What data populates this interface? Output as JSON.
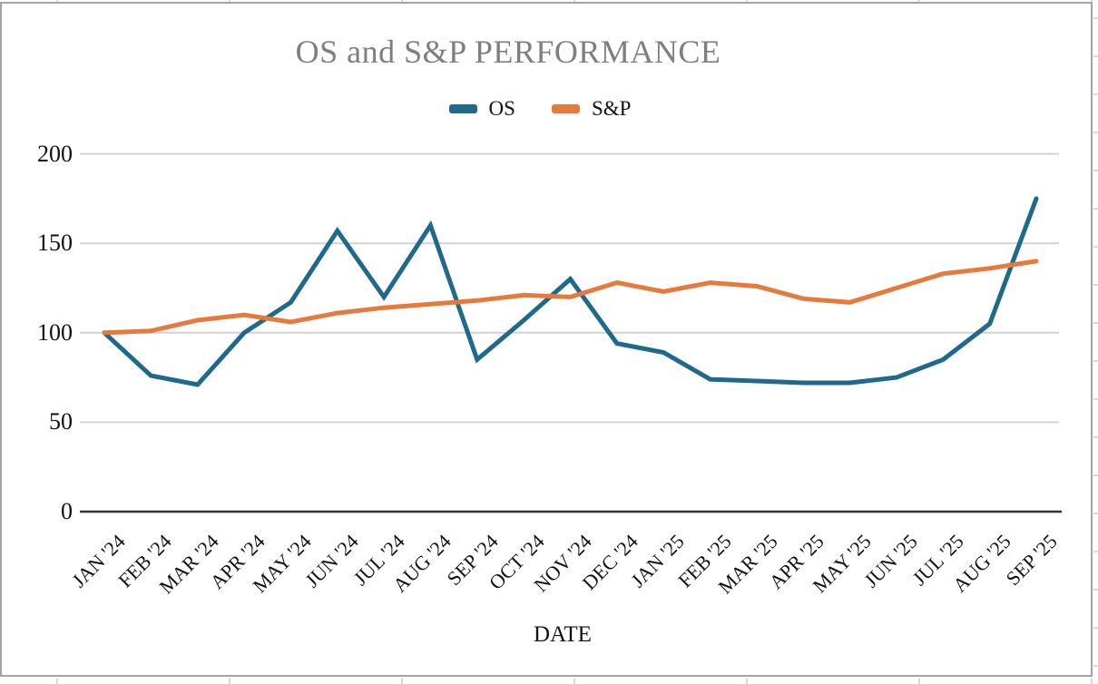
{
  "window": {
    "background_color": "#ffffff",
    "object_border_color": "#a3a3a3",
    "cell_gridline_color": "#cccccc"
  },
  "chart_data": {
    "type": "line",
    "title": "OS and S&P PERFORMANCE",
    "title_color": "#7f7f7f",
    "xlabel": "DATE",
    "ylabel": "",
    "categories": [
      "JAN '24",
      "FEB '24",
      "MAR '24",
      "APR '24",
      "MAY '24",
      "JUN '24",
      "JUL '24",
      "AUG '24",
      "SEP '24",
      "OCT '24",
      "NOV '24",
      "DEC '24",
      "JAN '25",
      "FEB '25",
      "MAR '25",
      "APR '25",
      "MAY '25",
      "JUN '25",
      "JUL '25",
      "AUG '25",
      "SEP '25"
    ],
    "series": [
      {
        "name": "OS",
        "color": "#1f698c",
        "values": [
          100,
          76,
          71,
          100,
          117,
          157,
          120,
          160,
          85,
          107,
          130,
          94,
          89,
          74,
          73,
          72,
          72,
          75,
          85,
          105,
          175
        ]
      },
      {
        "name": "S&P",
        "color": "#e8793c",
        "values": [
          100,
          101,
          107,
          110,
          106,
          111,
          114,
          116,
          118,
          121,
          120,
          128,
          123,
          128,
          126,
          119,
          117,
          125,
          133,
          136,
          140
        ]
      }
    ],
    "yticks": [
      0,
      50,
      100,
      150,
      200
    ],
    "ylim": [
      0,
      200
    ],
    "grid": true,
    "gridline_color": "#d2d2d2",
    "axis_line_color": "#333333",
    "legend_position": "top",
    "x_tick_rotation_deg": 45
  }
}
